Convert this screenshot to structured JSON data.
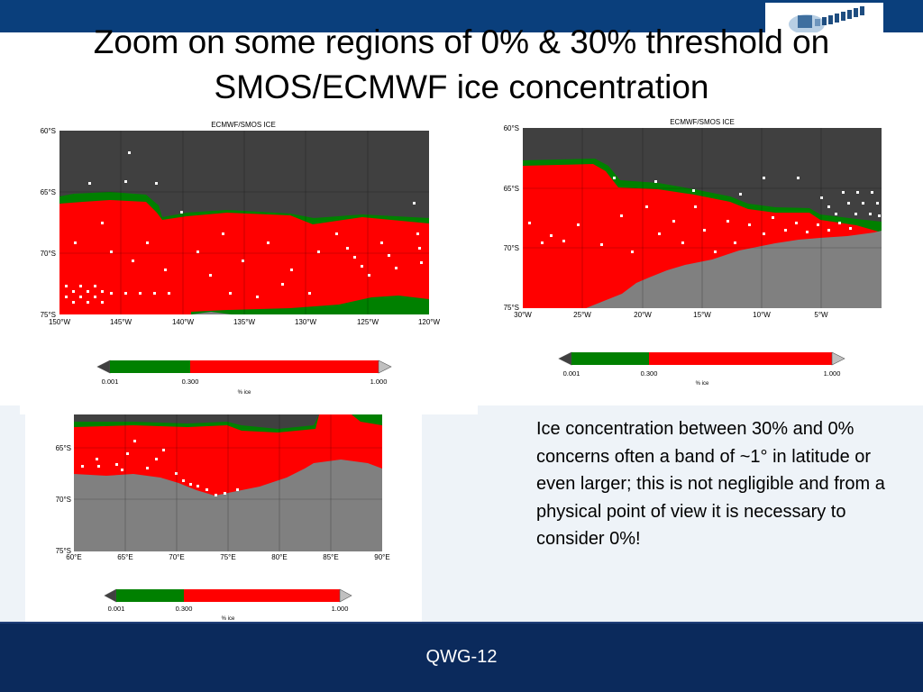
{
  "slide": {
    "title": "Zoom on some regions of 0% & 30% threshold on SMOS/ECMWF ice concentration",
    "body_text": "Ice concentration between 30% and 0% concerns often a band of ~1° in latitude or even larger; this is not negligible and from a physical point of view it is necessary to consider 0%!",
    "footer": "QWG-12"
  },
  "colors": {
    "header_bar": "#0a3f7c",
    "footer_bar": "#0b2a5c",
    "ice_0_to_30": "#008000",
    "ice_30_to_100": "#ff0000",
    "land": "#808080",
    "open_ocean": "#404040"
  },
  "logo": {
    "icon": "satellite-logo-icon"
  },
  "maps": [
    {
      "title": "ECMWF/SMOS ICE",
      "lat_ticks": [
        "60°S",
        "65°S",
        "70°S",
        "75°S"
      ],
      "lon_ticks": [
        "150°W",
        "145°W",
        "140°W",
        "135°W",
        "130°W",
        "125°W",
        "120°W"
      ],
      "colorbar": {
        "ticks": [
          "0.001",
          "0.300",
          "1.000"
        ],
        "label": "% ice"
      }
    },
    {
      "title": "ECMWF/SMOS ICE",
      "lat_ticks": [
        "60°S",
        "65°S",
        "70°S",
        "75°S"
      ],
      "lon_ticks": [
        "30°W",
        "25°W",
        "20°W",
        "15°W",
        "10°W",
        "5°W"
      ],
      "colorbar": {
        "ticks": [
          "0.001",
          "0.300",
          "1.000"
        ],
        "label": "% ice"
      }
    },
    {
      "title": "",
      "lat_ticks": [
        "65°S",
        "70°S",
        "75°S"
      ],
      "lon_ticks": [
        "60°E",
        "65°E",
        "70°E",
        "75°E",
        "80°E",
        "85°E",
        "90°E"
      ],
      "colorbar": {
        "ticks": [
          "0.001",
          "0.300",
          "1.000"
        ],
        "label": "% ice"
      }
    }
  ]
}
